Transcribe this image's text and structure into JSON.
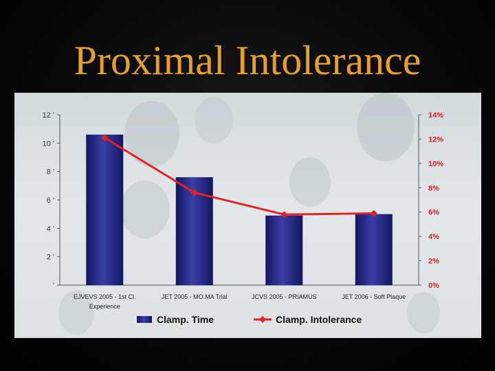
{
  "slide": {
    "title": "Proximal Intolerance"
  },
  "colors": {
    "title": "#e8a020",
    "bar": "#23277a",
    "line": "#e82020",
    "background": "#000000"
  },
  "chart_data": {
    "type": "bar",
    "categories": [
      [
        "EJVEVS 2005 - 1st Cl.",
        "Experience"
      ],
      [
        "JET 2005 - MO.MA Trial"
      ],
      [
        "JCVS 2005 - PRIAMUS"
      ],
      [
        "JET 2006 - Soft Plaque"
      ]
    ],
    "series": [
      {
        "name": "Clamp. Time",
        "kind": "bar",
        "axis": "left",
        "values": [
          10.6,
          7.6,
          4.9,
          5.0
        ]
      },
      {
        "name": "Clamp. Intolerance",
        "kind": "line",
        "axis": "right",
        "values": [
          12.1,
          7.6,
          5.8,
          5.9
        ]
      }
    ],
    "y_left": {
      "ticks": [
        "'",
        "2 '",
        "4 '",
        "6 '",
        "8 '",
        "10 '",
        "12 '"
      ],
      "ylim": [
        0,
        12
      ]
    },
    "y_right": {
      "ticks": [
        "0%",
        "2%",
        "4%",
        "6%",
        "8%",
        "10%",
        "12%",
        "14%"
      ],
      "ylim": [
        0,
        14
      ]
    },
    "legend": "bottom",
    "grid": false
  }
}
